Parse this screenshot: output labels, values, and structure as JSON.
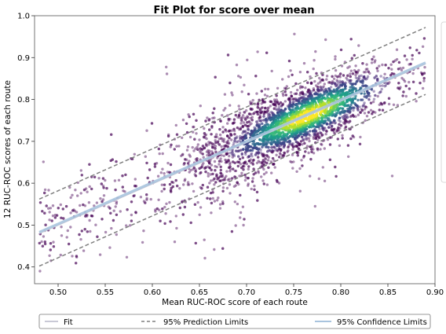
{
  "chart_data": {
    "type": "scatter",
    "title": "Fit Plot for score over mean",
    "xlabel": "Mean RUC-ROC score of each route",
    "ylabel": "12 RUC-ROC scores of each route",
    "xlim": [
      0.475,
      0.9
    ],
    "ylim": [
      0.36,
      1.0
    ],
    "xticks": [
      "0.50",
      "0.55",
      "0.60",
      "0.65",
      "0.70",
      "0.75",
      "0.80",
      "0.85",
      "0.90"
    ],
    "yticks": [
      "0.4",
      "0.5",
      "0.6",
      "0.7",
      "0.8",
      "0.9",
      "1.0"
    ],
    "grid": false,
    "colormap": "viridis (point density)",
    "scatter_density": {
      "x_range": [
        0.48,
        0.89
      ],
      "dense_center": [
        0.76,
        0.77
      ],
      "approx_points": 4000
    },
    "series": [
      {
        "name": "Fit",
        "kind": "line",
        "x": [
          0.48,
          0.89
        ],
        "y": [
          0.48,
          0.885
        ],
        "color": "#c9c9d6"
      },
      {
        "name": "95% Prediction Limits",
        "kind": "dashed",
        "x": [
          0.48,
          0.89
        ],
        "y_upper": [
          0.562,
          0.972
        ],
        "y_lower": [
          0.402,
          0.812
        ],
        "color": "#7f7f7f"
      },
      {
        "name": "95% Confidence Limits",
        "kind": "band",
        "x": [
          0.48,
          0.89
        ],
        "y": [
          0.483,
          0.888
        ],
        "color": "#a9c4de"
      }
    ],
    "legend": {
      "position": "bottom",
      "entries": [
        "Fit",
        "95% Prediction Limits",
        "95% Confidence Limits"
      ]
    },
    "colorbar": {
      "position": "right (clipped)"
    }
  }
}
